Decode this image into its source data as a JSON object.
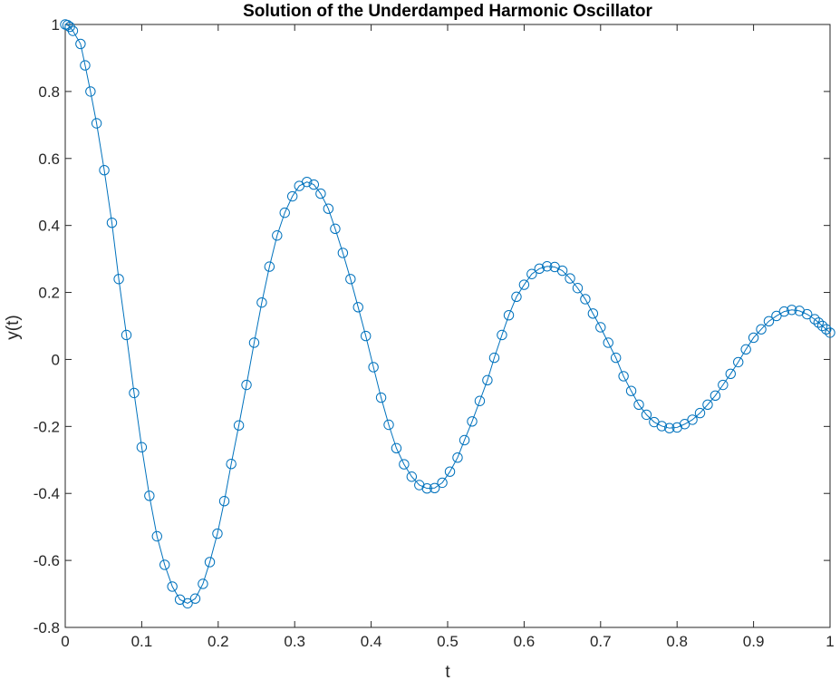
{
  "chart_data": {
    "type": "line",
    "title": "Solution of the Underdamped Harmonic Oscillator",
    "xlabel": "t",
    "ylabel": "y(t)",
    "xlim": [
      0,
      1
    ],
    "ylim": [
      -0.8,
      1
    ],
    "x_ticks": [
      "0",
      "0.1",
      "0.2",
      "0.3",
      "0.4",
      "0.5",
      "0.6",
      "0.7",
      "0.8",
      "0.9",
      "1"
    ],
    "y_ticks": [
      "-0.8",
      "-0.6",
      "-0.4",
      "-0.2",
      "0",
      "0.2",
      "0.4",
      "0.6",
      "0.8",
      "1"
    ],
    "grid": false,
    "box": true,
    "series": [
      {
        "color": "#0072BD",
        "marker": "circle",
        "line": "solid",
        "points": [
          [
            0.0,
            1.0
          ],
          [
            0.003,
            0.998
          ],
          [
            0.006,
            0.993
          ],
          [
            0.01,
            0.981
          ],
          [
            0.02,
            0.942
          ],
          [
            0.026,
            0.878
          ],
          [
            0.033,
            0.8
          ],
          [
            0.041,
            0.705
          ],
          [
            0.051,
            0.565
          ],
          [
            0.061,
            0.408
          ],
          [
            0.07,
            0.24
          ],
          [
            0.08,
            0.073
          ],
          [
            0.09,
            -0.1
          ],
          [
            0.1,
            -0.262
          ],
          [
            0.11,
            -0.407
          ],
          [
            0.12,
            -0.528
          ],
          [
            0.13,
            -0.613
          ],
          [
            0.14,
            -0.678
          ],
          [
            0.15,
            -0.717
          ],
          [
            0.16,
            -0.728
          ],
          [
            0.17,
            -0.714
          ],
          [
            0.18,
            -0.67
          ],
          [
            0.189,
            -0.605
          ],
          [
            0.199,
            -0.52
          ],
          [
            0.208,
            -0.423
          ],
          [
            0.217,
            -0.312
          ],
          [
            0.227,
            -0.197
          ],
          [
            0.237,
            -0.076
          ],
          [
            0.247,
            0.05
          ],
          [
            0.257,
            0.17
          ],
          [
            0.267,
            0.277
          ],
          [
            0.277,
            0.37
          ],
          [
            0.287,
            0.438
          ],
          [
            0.297,
            0.487
          ],
          [
            0.306,
            0.518
          ],
          [
            0.316,
            0.53
          ],
          [
            0.325,
            0.522
          ],
          [
            0.334,
            0.495
          ],
          [
            0.344,
            0.45
          ],
          [
            0.353,
            0.39
          ],
          [
            0.363,
            0.318
          ],
          [
            0.373,
            0.24
          ],
          [
            0.383,
            0.156
          ],
          [
            0.393,
            0.07
          ],
          [
            0.403,
            -0.023
          ],
          [
            0.413,
            -0.114
          ],
          [
            0.423,
            -0.195
          ],
          [
            0.433,
            -0.265
          ],
          [
            0.443,
            -0.313
          ],
          [
            0.453,
            -0.35
          ],
          [
            0.463,
            -0.375
          ],
          [
            0.473,
            -0.385
          ],
          [
            0.483,
            -0.384
          ],
          [
            0.493,
            -0.368
          ],
          [
            0.503,
            -0.335
          ],
          [
            0.513,
            -0.293
          ],
          [
            0.522,
            -0.241
          ],
          [
            0.532,
            -0.185
          ],
          [
            0.542,
            -0.124
          ],
          [
            0.552,
            -0.062
          ],
          [
            0.561,
            0.005
          ],
          [
            0.571,
            0.073
          ],
          [
            0.58,
            0.132
          ],
          [
            0.59,
            0.187
          ],
          [
            0.6,
            0.223
          ],
          [
            0.61,
            0.255
          ],
          [
            0.62,
            0.271
          ],
          [
            0.63,
            0.278
          ],
          [
            0.64,
            0.276
          ],
          [
            0.65,
            0.265
          ],
          [
            0.66,
            0.242
          ],
          [
            0.67,
            0.213
          ],
          [
            0.68,
            0.18
          ],
          [
            0.69,
            0.137
          ],
          [
            0.7,
            0.096
          ],
          [
            0.71,
            0.05
          ],
          [
            0.72,
            0.005
          ],
          [
            0.73,
            -0.05
          ],
          [
            0.74,
            -0.094
          ],
          [
            0.75,
            -0.135
          ],
          [
            0.76,
            -0.165
          ],
          [
            0.77,
            -0.187
          ],
          [
            0.78,
            -0.199
          ],
          [
            0.79,
            -0.205
          ],
          [
            0.8,
            -0.203
          ],
          [
            0.81,
            -0.193
          ],
          [
            0.82,
            -0.18
          ],
          [
            0.83,
            -0.16
          ],
          [
            0.84,
            -0.135
          ],
          [
            0.85,
            -0.108
          ],
          [
            0.86,
            -0.076
          ],
          [
            0.87,
            -0.043
          ],
          [
            0.88,
            -0.008
          ],
          [
            0.89,
            0.03
          ],
          [
            0.9,
            0.065
          ],
          [
            0.91,
            0.09
          ],
          [
            0.92,
            0.114
          ],
          [
            0.93,
            0.13
          ],
          [
            0.94,
            0.143
          ],
          [
            0.95,
            0.148
          ],
          [
            0.96,
            0.145
          ],
          [
            0.97,
            0.135
          ],
          [
            0.98,
            0.12
          ],
          [
            0.985,
            0.11
          ],
          [
            0.99,
            0.1
          ],
          [
            0.995,
            0.09
          ],
          [
            1.0,
            0.08
          ]
        ]
      }
    ]
  }
}
